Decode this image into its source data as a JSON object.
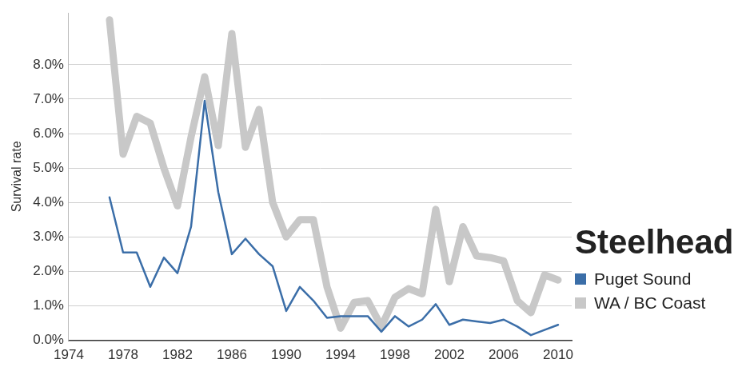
{
  "chart_data": {
    "type": "line",
    "title": "Steelhead",
    "y_label": "Survival rate",
    "x": [
      1977,
      1978,
      1979,
      1980,
      1981,
      1982,
      1983,
      1984,
      1985,
      1986,
      1987,
      1988,
      1989,
      1990,
      1991,
      1992,
      1993,
      1994,
      1995,
      1996,
      1997,
      1998,
      1999,
      2000,
      2001,
      2002,
      2003,
      2004,
      2005,
      2006,
      2007,
      2008,
      2009,
      2010
    ],
    "series": [
      {
        "name": "Puget Sound",
        "color": "#3b6ea8",
        "values": [
          4.15,
          2.55,
          2.55,
          1.55,
          2.4,
          1.95,
          3.3,
          6.95,
          4.3,
          2.5,
          2.95,
          2.5,
          2.15,
          0.85,
          1.55,
          1.15,
          0.65,
          0.7,
          0.7,
          0.7,
          0.25,
          0.7,
          0.4,
          0.6,
          1.05,
          0.45,
          0.6,
          0.55,
          0.5,
          0.6,
          0.4,
          0.15,
          0.3,
          0.45
        ]
      },
      {
        "name": "WA / BC Coast",
        "color": "#c8c8c8",
        "values": [
          9.3,
          5.4,
          6.5,
          6.3,
          5.0,
          3.9,
          5.9,
          7.65,
          5.65,
          8.9,
          5.6,
          6.7,
          4.0,
          3.0,
          3.5,
          3.5,
          1.55,
          0.35,
          1.1,
          1.15,
          0.4,
          1.25,
          1.5,
          1.35,
          3.8,
          1.7,
          3.3,
          2.45,
          2.4,
          2.3,
          1.15,
          0.8,
          1.9,
          1.75
        ]
      }
    ],
    "xlim": [
      1974,
      2011
    ],
    "xticks": [
      1974,
      1978,
      1982,
      1986,
      1990,
      1994,
      1998,
      2002,
      2006,
      2010
    ],
    "ylim": [
      0,
      9.5
    ],
    "yticks": [
      {
        "value": 0,
        "label": "0.0%"
      },
      {
        "value": 1,
        "label": "1.0%"
      },
      {
        "value": 2,
        "label": "2.0%"
      },
      {
        "value": 3,
        "label": "3.0%"
      },
      {
        "value": 4,
        "label": "4.0%"
      },
      {
        "value": 5,
        "label": "5.0%"
      },
      {
        "value": 6,
        "label": "6.0%"
      },
      {
        "value": 7,
        "label": "7.0%"
      },
      {
        "value": 8,
        "label": "8.0%"
      }
    ],
    "grid": "y",
    "legend": "right"
  }
}
